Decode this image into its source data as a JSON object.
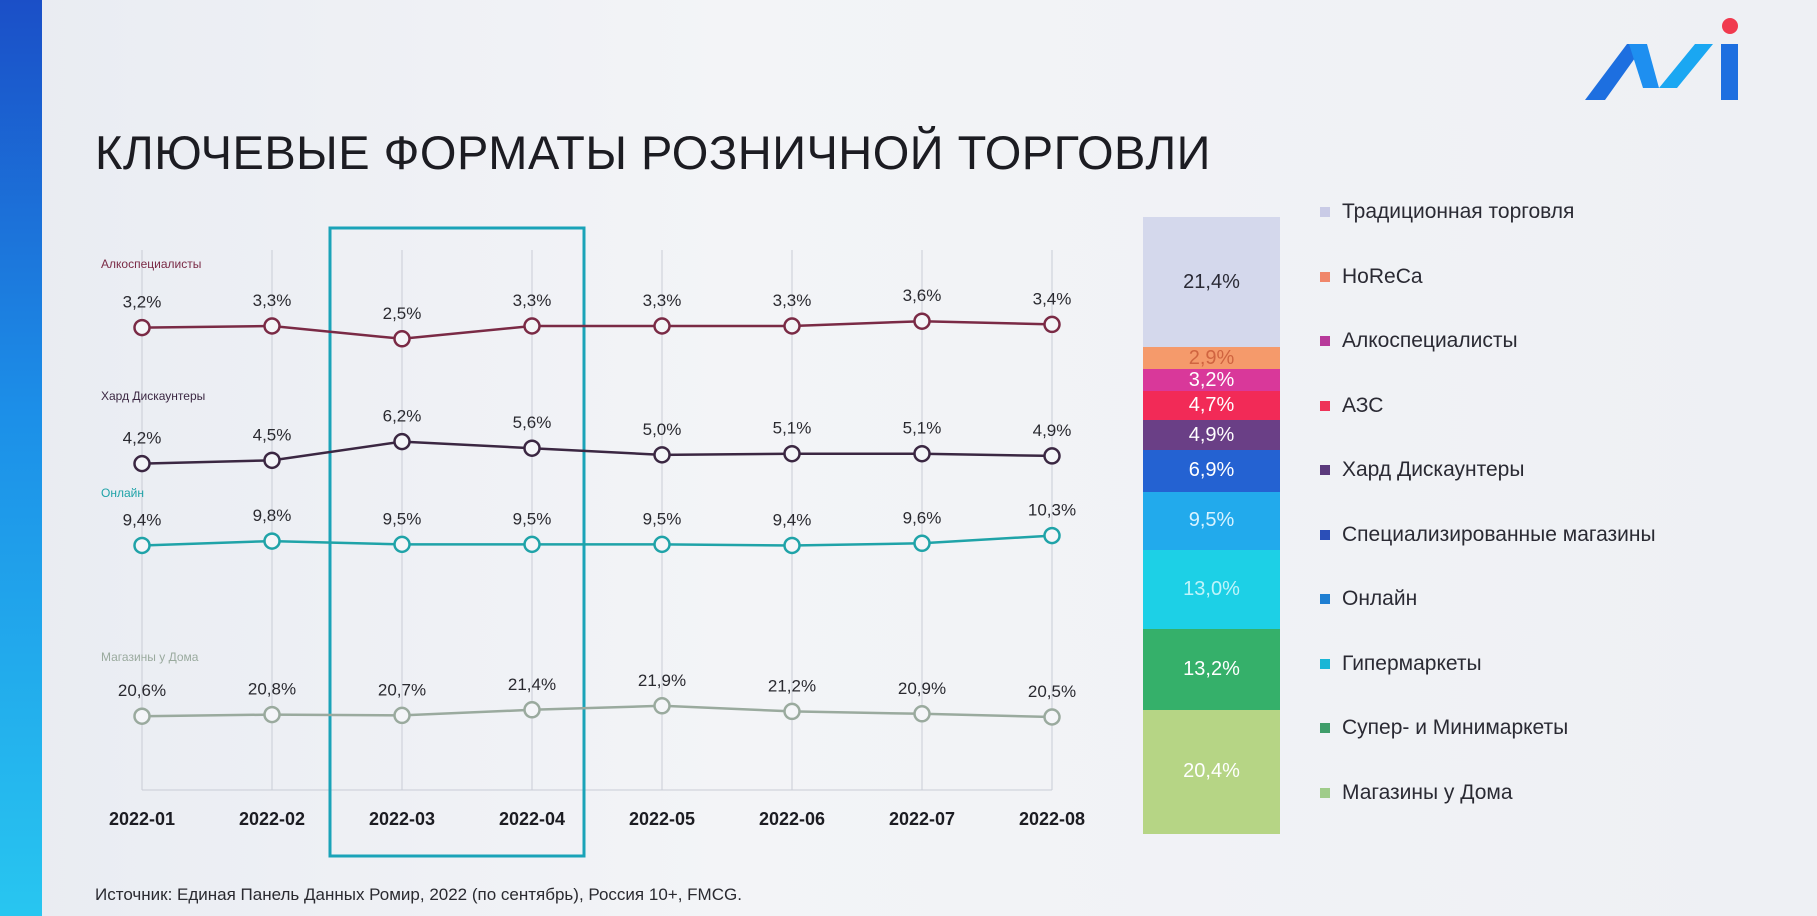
{
  "title": "КЛЮЧЕВЫЕ ФОРМАТЫ РОЗНИЧНОЙ ТОРГОВЛИ",
  "footnote": "Источник: Единая Панель Данных Ромир, 2022 (по сентябрь), Россия 10+, FMCG.",
  "logo_icon": "romir-logo-icon",
  "chart_data": [
    {
      "type": "line",
      "categories": [
        "2022-01",
        "2022-02",
        "2022-03",
        "2022-04",
        "2022-05",
        "2022-06",
        "2022-07",
        "2022-08"
      ],
      "highlighted_categories": [
        "2022-03",
        "2022-04"
      ],
      "series": [
        {
          "name": "Алкоспециалисты",
          "color": "#7a2a45",
          "values": [
            3.2,
            3.3,
            2.5,
            3.3,
            3.3,
            3.3,
            3.6,
            3.4
          ],
          "labels": [
            "3,2%",
            "3,3%",
            "2,5%",
            "3,3%",
            "3,3%",
            "3,3%",
            "3,6%",
            "3,4%"
          ]
        },
        {
          "name": "Хард Дискаунтеры",
          "color": "#3b2742",
          "values": [
            4.2,
            4.5,
            6.2,
            5.6,
            5.0,
            5.1,
            5.1,
            4.9
          ],
          "labels": [
            "4,2%",
            "4,5%",
            "6,2%",
            "5,6%",
            "5,0%",
            "5,1%",
            "5,1%",
            "4,9%"
          ]
        },
        {
          "name": "Онлайн",
          "color": "#1fa3a8",
          "values": [
            9.4,
            9.8,
            9.5,
            9.5,
            9.5,
            9.4,
            9.6,
            10.3
          ],
          "labels": [
            "9,4%",
            "9,8%",
            "9,5%",
            "9,5%",
            "9,5%",
            "9,4%",
            "9,6%",
            "10,3%"
          ]
        },
        {
          "name": "Магазины у Дома",
          "color": "#9aaa9e",
          "values": [
            20.6,
            20.8,
            20.7,
            21.4,
            21.9,
            21.2,
            20.9,
            20.5
          ],
          "labels": [
            "20,6%",
            "20,8%",
            "20,7%",
            "21,4%",
            "21,9%",
            "21,2%",
            "20,9%",
            "20,5%"
          ]
        }
      ],
      "grid": true,
      "highlight_color": "#1aa3b8"
    },
    {
      "type": "bar",
      "stacked": true,
      "segments": [
        {
          "name": "Традиционная торговля",
          "value": 21.4,
          "label": "21,4%",
          "color": "#d4d8ec",
          "text_color": "#2a2a35"
        },
        {
          "name": "HoReCa",
          "value": 2.9,
          "label": "2,9%",
          "color": "#f59a6b",
          "text_color": "#d06440"
        },
        {
          "name": "Алкоспециалисты",
          "value": 3.2,
          "label": "3,2%",
          "color": "#d9389a",
          "text_color": "#ffffff"
        },
        {
          "name": "АЗС",
          "value": 4.7,
          "label": "4,7%",
          "color": "#f22a57",
          "text_color": "#ffffff"
        },
        {
          "name": "Хард Дискаунтеры",
          "value": 4.9,
          "label": "4,9%",
          "color": "#6a3f86",
          "text_color": "#ffffff"
        },
        {
          "name": "Специализированные магазины",
          "value": 6.9,
          "label": "6,9%",
          "color": "#2462d2",
          "text_color": "#ffffff"
        },
        {
          "name": "Онлайн",
          "value": 9.5,
          "label": "9,5%",
          "color": "#22aaec",
          "text_color": "#d8f3ff"
        },
        {
          "name": "Гипермаркеты",
          "value": 13.0,
          "label": "13,0%",
          "color": "#1dd0e6",
          "text_color": "#bff4fa"
        },
        {
          "name": "Супер- и Минимаркеты",
          "value": 13.2,
          "label": "13,2%",
          "color": "#35b06a",
          "text_color": "#ffffff"
        },
        {
          "name": "Магазины у Дома",
          "value": 20.4,
          "label": "20,4%",
          "color": "#b6d585",
          "text_color": "#ffffff"
        }
      ]
    }
  ],
  "legend": [
    {
      "name": "Традиционная торговля",
      "color": "#c9cbe6"
    },
    {
      "name": "HoReCa",
      "color": "#f0866a"
    },
    {
      "name": "Алкоспециалисты",
      "color": "#b73a9a"
    },
    {
      "name": "АЗС",
      "color": "#ee3358"
    },
    {
      "name": "Хард Дискаунтеры",
      "color": "#5b3a7c"
    },
    {
      "name": "Специализированные магазины",
      "color": "#2b4fb8"
    },
    {
      "name": "Онлайн",
      "color": "#1f7fd2"
    },
    {
      "name": "Гипермаркеты",
      "color": "#19b6d6"
    },
    {
      "name": "Супер- и Минимаркеты",
      "color": "#3f9d6a"
    },
    {
      "name": "Магазины у Дома",
      "color": "#9fcc8a"
    }
  ]
}
